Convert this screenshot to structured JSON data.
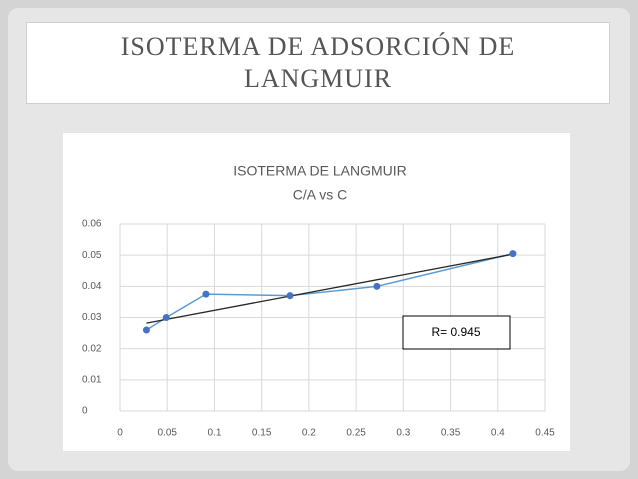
{
  "slide": {
    "title": "ISOTERMA DE ADSORCIÓN DE LANGMUIR"
  },
  "chart_data": {
    "type": "line",
    "title": "ISOTERMA DE LANGMUIR",
    "subtitle": "C/A vs C",
    "x": [
      0.028,
      0.049,
      0.091,
      0.18,
      0.272,
      0.416
    ],
    "series": [
      {
        "color": "#5b9bd5",
        "values": [
          0.026,
          0.03,
          0.0375,
          0.037,
          0.04,
          0.0505
        ]
      }
    ],
    "trendline": {
      "x": [
        0.028,
        0.416
      ],
      "values": [
        0.0282,
        0.0503
      ],
      "color": "#262626"
    },
    "annotation": "R= 0.945",
    "xlim": [
      0,
      0.45
    ],
    "xticks": [
      0,
      0.05,
      0.1,
      0.15,
      0.2,
      0.25,
      0.3,
      0.35,
      0.4,
      0.45
    ],
    "ylim": [
      0,
      0.06
    ],
    "yticks": [
      0,
      0.01,
      0.02,
      0.03,
      0.04,
      0.05,
      0.06
    ],
    "grid": true
  }
}
